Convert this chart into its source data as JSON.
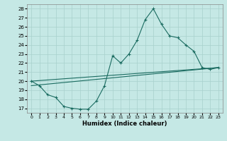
{
  "xlabel": "Humidex (Indice chaleur)",
  "xlim": [
    -0.5,
    23.5
  ],
  "ylim": [
    16.5,
    28.5
  ],
  "xticks": [
    0,
    1,
    2,
    3,
    4,
    5,
    6,
    7,
    8,
    9,
    10,
    11,
    12,
    13,
    14,
    15,
    16,
    17,
    18,
    19,
    20,
    21,
    22,
    23
  ],
  "yticks": [
    17,
    18,
    19,
    20,
    21,
    22,
    23,
    24,
    25,
    26,
    27,
    28
  ],
  "bg_color": "#c5e8e5",
  "grid_color": "#a8d0cc",
  "line_color": "#1a6b60",
  "line1_x": [
    0,
    1,
    2,
    3,
    4,
    5,
    6,
    7,
    8,
    9,
    10,
    11,
    12,
    13,
    14,
    15,
    16,
    17,
    18,
    19,
    20,
    21,
    22,
    23
  ],
  "line1_y": [
    20.0,
    19.5,
    18.5,
    18.2,
    17.2,
    17.0,
    16.9,
    16.9,
    17.8,
    19.5,
    22.8,
    22.0,
    23.0,
    24.5,
    26.8,
    28.0,
    26.3,
    25.0,
    24.8,
    24.0,
    23.3,
    21.5,
    21.3,
    21.5
  ],
  "line2_x": [
    0,
    23
  ],
  "line2_y": [
    20.0,
    21.5
  ],
  "line3_x": [
    0,
    23
  ],
  "line3_y": [
    19.5,
    21.5
  ]
}
